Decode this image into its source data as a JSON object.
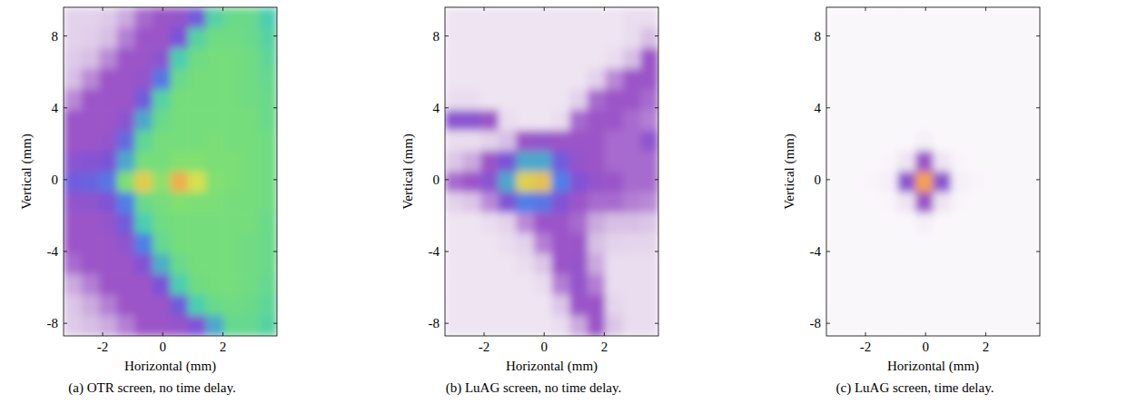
{
  "chart_data": [
    {
      "type": "heatmap",
      "title": "(a) OTR screen, no time delay.",
      "x_label": "Horizontal (mm)",
      "y_label": "Vertical (mm)",
      "xlim": [
        -3.3,
        3.8
      ],
      "ylim": [
        -8.7,
        9.6
      ],
      "xticks": [
        -2,
        0,
        2
      ],
      "yticks": [
        -8,
        -4,
        0,
        4,
        8
      ],
      "zlim": [
        0,
        1
      ],
      "cells": [
        [
          0.15,
          0.15,
          0.17,
          0.22,
          0.28,
          0.3,
          0.32,
          0.42,
          0.62,
          0.66,
          0.66,
          0.6
        ],
        [
          0.15,
          0.16,
          0.2,
          0.26,
          0.3,
          0.3,
          0.4,
          0.62,
          0.67,
          0.67,
          0.66,
          0.62
        ],
        [
          0.17,
          0.2,
          0.25,
          0.3,
          0.3,
          0.35,
          0.6,
          0.67,
          0.68,
          0.68,
          0.67,
          0.64
        ],
        [
          0.2,
          0.25,
          0.3,
          0.3,
          0.32,
          0.48,
          0.66,
          0.68,
          0.68,
          0.68,
          0.67,
          0.65
        ],
        [
          0.25,
          0.3,
          0.3,
          0.3,
          0.42,
          0.62,
          0.68,
          0.68,
          0.68,
          0.68,
          0.67,
          0.66
        ],
        [
          0.3,
          0.3,
          0.3,
          0.35,
          0.55,
          0.66,
          0.68,
          0.68,
          0.68,
          0.68,
          0.68,
          0.66
        ],
        [
          0.3,
          0.3,
          0.32,
          0.45,
          0.64,
          0.68,
          0.68,
          0.68,
          0.69,
          0.68,
          0.68,
          0.67
        ],
        [
          0.35,
          0.36,
          0.4,
          0.55,
          0.68,
          0.68,
          0.7,
          0.7,
          0.69,
          0.69,
          0.68,
          0.67
        ],
        [
          0.42,
          0.44,
          0.48,
          0.7,
          0.86,
          0.72,
          0.92,
          0.82,
          0.7,
          0.69,
          0.68,
          0.67
        ],
        [
          0.33,
          0.34,
          0.38,
          0.5,
          0.66,
          0.68,
          0.7,
          0.69,
          0.69,
          0.68,
          0.68,
          0.67
        ],
        [
          0.3,
          0.3,
          0.32,
          0.42,
          0.6,
          0.67,
          0.68,
          0.68,
          0.68,
          0.68,
          0.68,
          0.66
        ],
        [
          0.3,
          0.3,
          0.3,
          0.34,
          0.5,
          0.65,
          0.68,
          0.68,
          0.68,
          0.68,
          0.67,
          0.66
        ],
        [
          0.28,
          0.3,
          0.3,
          0.3,
          0.38,
          0.56,
          0.66,
          0.68,
          0.68,
          0.68,
          0.67,
          0.66
        ],
        [
          0.22,
          0.26,
          0.3,
          0.3,
          0.3,
          0.4,
          0.6,
          0.67,
          0.68,
          0.68,
          0.67,
          0.65
        ],
        [
          0.18,
          0.22,
          0.26,
          0.3,
          0.3,
          0.3,
          0.42,
          0.6,
          0.66,
          0.67,
          0.66,
          0.64
        ],
        [
          0.17,
          0.2,
          0.22,
          0.26,
          0.3,
          0.3,
          0.32,
          0.38,
          0.55,
          0.65,
          0.65,
          0.62
        ]
      ]
    },
    {
      "type": "heatmap",
      "title": "(b) LuAG screen, no time delay.",
      "x_label": "Horizontal (mm)",
      "y_label": "Vertical (mm)",
      "xlim": [
        -3.3,
        3.8
      ],
      "ylim": [
        -8.7,
        9.6
      ],
      "xticks": [
        -2,
        0,
        2
      ],
      "yticks": [
        -8,
        -4,
        0,
        4,
        8
      ],
      "zlim": [
        0,
        1
      ],
      "cells": [
        [
          0.1,
          0.1,
          0.1,
          0.1,
          0.1,
          0.1,
          0.1,
          0.1,
          0.1,
          0.1,
          0.12,
          0.12
        ],
        [
          0.1,
          0.1,
          0.1,
          0.1,
          0.1,
          0.1,
          0.1,
          0.1,
          0.1,
          0.1,
          0.12,
          0.2
        ],
        [
          0.1,
          0.1,
          0.1,
          0.1,
          0.1,
          0.1,
          0.1,
          0.1,
          0.1,
          0.12,
          0.2,
          0.3
        ],
        [
          0.1,
          0.1,
          0.1,
          0.1,
          0.1,
          0.1,
          0.1,
          0.1,
          0.15,
          0.25,
          0.3,
          0.3
        ],
        [
          0.12,
          0.12,
          0.1,
          0.1,
          0.1,
          0.1,
          0.1,
          0.15,
          0.28,
          0.3,
          0.3,
          0.28
        ],
        [
          0.35,
          0.35,
          0.3,
          0.12,
          0.1,
          0.1,
          0.12,
          0.28,
          0.3,
          0.3,
          0.28,
          0.26
        ],
        [
          0.12,
          0.12,
          0.15,
          0.2,
          0.3,
          0.32,
          0.3,
          0.3,
          0.3,
          0.28,
          0.28,
          0.34
        ],
        [
          0.18,
          0.22,
          0.3,
          0.4,
          0.55,
          0.55,
          0.42,
          0.32,
          0.3,
          0.28,
          0.28,
          0.28
        ],
        [
          0.28,
          0.3,
          0.35,
          0.55,
          0.85,
          0.88,
          0.5,
          0.38,
          0.32,
          0.3,
          0.28,
          0.28
        ],
        [
          0.15,
          0.18,
          0.25,
          0.38,
          0.5,
          0.48,
          0.38,
          0.3,
          0.28,
          0.28,
          0.26,
          0.25
        ],
        [
          0.1,
          0.1,
          0.12,
          0.15,
          0.25,
          0.3,
          0.3,
          0.28,
          0.22,
          0.2,
          0.2,
          0.18
        ],
        [
          0.1,
          0.1,
          0.1,
          0.12,
          0.15,
          0.26,
          0.3,
          0.3,
          0.2,
          0.15,
          0.14,
          0.14
        ],
        [
          0.1,
          0.1,
          0.1,
          0.1,
          0.12,
          0.18,
          0.3,
          0.32,
          0.22,
          0.12,
          0.12,
          0.12
        ],
        [
          0.1,
          0.1,
          0.1,
          0.1,
          0.1,
          0.12,
          0.26,
          0.32,
          0.26,
          0.12,
          0.12,
          0.12
        ],
        [
          0.1,
          0.1,
          0.1,
          0.1,
          0.1,
          0.1,
          0.18,
          0.3,
          0.3,
          0.14,
          0.12,
          0.12
        ],
        [
          0.1,
          0.1,
          0.1,
          0.1,
          0.1,
          0.1,
          0.12,
          0.22,
          0.3,
          0.18,
          0.12,
          0.12
        ]
      ]
    },
    {
      "type": "heatmap",
      "title": "(c) LuAG screen, time delay.",
      "x_label": "Horizontal (mm)",
      "y_label": "Vertical (mm)",
      "xlim": [
        -3.3,
        3.8
      ],
      "ylim": [
        -8.7,
        9.6
      ],
      "xticks": [
        -2,
        0,
        2
      ],
      "yticks": [
        -8,
        -4,
        0,
        4,
        8
      ],
      "zlim": [
        0,
        1
      ],
      "cells": [
        [
          0.03,
          0.03,
          0.03,
          0.03,
          0.03,
          0.03,
          0.03,
          0.03,
          0.03,
          0.03,
          0.03,
          0.03
        ],
        [
          0.03,
          0.03,
          0.03,
          0.03,
          0.03,
          0.03,
          0.03,
          0.03,
          0.03,
          0.03,
          0.03,
          0.03
        ],
        [
          0.03,
          0.03,
          0.03,
          0.03,
          0.03,
          0.03,
          0.03,
          0.03,
          0.03,
          0.03,
          0.03,
          0.03
        ],
        [
          0.03,
          0.03,
          0.03,
          0.03,
          0.03,
          0.03,
          0.03,
          0.03,
          0.03,
          0.03,
          0.03,
          0.03
        ],
        [
          0.03,
          0.03,
          0.03,
          0.03,
          0.03,
          0.03,
          0.03,
          0.03,
          0.03,
          0.03,
          0.03,
          0.03
        ],
        [
          0.03,
          0.03,
          0.03,
          0.03,
          0.03,
          0.03,
          0.03,
          0.03,
          0.03,
          0.03,
          0.03,
          0.03
        ],
        [
          0.03,
          0.03,
          0.03,
          0.03,
          0.03,
          0.06,
          0.03,
          0.03,
          0.03,
          0.03,
          0.03,
          0.03
        ],
        [
          0.03,
          0.03,
          0.03,
          0.04,
          0.1,
          0.3,
          0.1,
          0.04,
          0.03,
          0.03,
          0.03,
          0.03
        ],
        [
          0.03,
          0.03,
          0.04,
          0.06,
          0.35,
          0.95,
          0.35,
          0.06,
          0.04,
          0.03,
          0.03,
          0.03
        ],
        [
          0.03,
          0.03,
          0.03,
          0.04,
          0.1,
          0.3,
          0.1,
          0.04,
          0.03,
          0.03,
          0.03,
          0.03
        ],
        [
          0.03,
          0.03,
          0.03,
          0.03,
          0.03,
          0.06,
          0.03,
          0.03,
          0.03,
          0.03,
          0.03,
          0.03
        ],
        [
          0.03,
          0.03,
          0.03,
          0.03,
          0.03,
          0.03,
          0.03,
          0.03,
          0.03,
          0.03,
          0.03,
          0.03
        ],
        [
          0.03,
          0.03,
          0.03,
          0.03,
          0.03,
          0.03,
          0.03,
          0.03,
          0.03,
          0.03,
          0.03,
          0.03
        ],
        [
          0.03,
          0.03,
          0.03,
          0.03,
          0.03,
          0.03,
          0.03,
          0.03,
          0.03,
          0.03,
          0.03,
          0.03
        ],
        [
          0.03,
          0.03,
          0.03,
          0.03,
          0.03,
          0.03,
          0.03,
          0.03,
          0.03,
          0.03,
          0.03,
          0.03
        ],
        [
          0.03,
          0.03,
          0.03,
          0.03,
          0.03,
          0.03,
          0.03,
          0.03,
          0.03,
          0.03,
          0.03,
          0.03
        ]
      ]
    }
  ]
}
